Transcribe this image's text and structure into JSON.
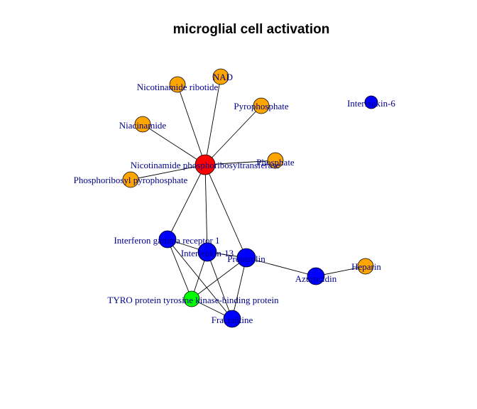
{
  "title": "microglial cell activation",
  "colors": {
    "red": "#ff0000",
    "orange": "#ffa500",
    "blue": "#0000ff",
    "green": "#00ff00",
    "label": "#00008b"
  },
  "nodes": [
    {
      "id": "npt",
      "label": "Nicotinamide phosphoribosyltransferase",
      "color": "red"
    },
    {
      "id": "nad",
      "label": "NAD",
      "color": "orange"
    },
    {
      "id": "nmn",
      "label": "Nicotinamide ribotide",
      "color": "orange"
    },
    {
      "id": "ppi",
      "label": "Pyrophosphate",
      "color": "orange"
    },
    {
      "id": "nia",
      "label": "Niacinamide",
      "color": "orange"
    },
    {
      "id": "pho",
      "label": "Phosphate",
      "color": "orange"
    },
    {
      "id": "prpp",
      "label": "Phosphoribosyl pyrophosphate",
      "color": "orange"
    },
    {
      "id": "il6",
      "label": "Interleukin-6",
      "color": "blue"
    },
    {
      "id": "ifngr1",
      "label": "Interferon gamma receptor 1",
      "color": "blue"
    },
    {
      "id": "il13",
      "label": "Interleukin-13",
      "color": "blue"
    },
    {
      "id": "proins",
      "label": "Proinsulin",
      "color": "blue"
    },
    {
      "id": "aza",
      "label": "Azurocidin",
      "color": "blue"
    },
    {
      "id": "hep",
      "label": "Heparin",
      "color": "orange"
    },
    {
      "id": "tyrobp",
      "label": "TYRO protein tyrosine kinase-binding protein",
      "color": "green"
    },
    {
      "id": "frac",
      "label": "Fractalkine",
      "color": "blue"
    }
  ],
  "edges": [
    [
      "npt",
      "nad"
    ],
    [
      "npt",
      "nmn"
    ],
    [
      "npt",
      "ppi"
    ],
    [
      "npt",
      "nia"
    ],
    [
      "npt",
      "pho"
    ],
    [
      "npt",
      "prpp"
    ],
    [
      "npt",
      "ifngr1"
    ],
    [
      "npt",
      "il13"
    ],
    [
      "npt",
      "proins"
    ],
    [
      "ifngr1",
      "il13"
    ],
    [
      "ifngr1",
      "tyrobp"
    ],
    [
      "ifngr1",
      "frac"
    ],
    [
      "il13",
      "proins"
    ],
    [
      "il13",
      "tyrobp"
    ],
    [
      "il13",
      "frac"
    ],
    [
      "proins",
      "tyrobp"
    ],
    [
      "proins",
      "frac"
    ],
    [
      "proins",
      "aza"
    ],
    [
      "aza",
      "hep"
    ],
    [
      "tyrobp",
      "frac"
    ]
  ]
}
